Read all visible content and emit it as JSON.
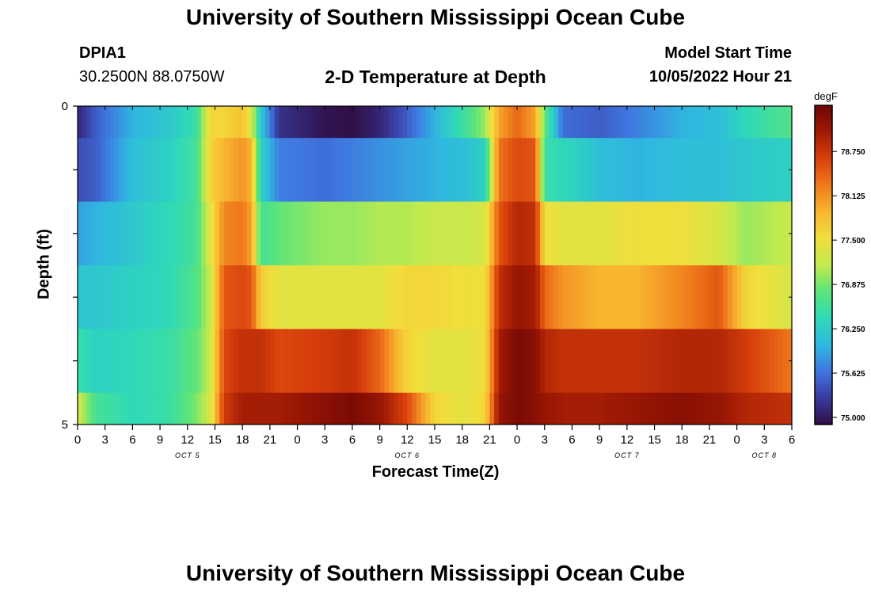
{
  "header": {
    "title_top": "University of Southern Mississippi Ocean Cube",
    "station_id": "DPIA1",
    "station_coords": "30.2500N  88.0750W",
    "chart_title": "2-D Temperature at Depth",
    "model_start_label": "Model Start Time",
    "model_start_value": "10/05/2022 Hour 21",
    "title_bottom": "University of Southern Mississippi Ocean Cube"
  },
  "colors": {
    "ramp": [
      "#2f0f45",
      "#3a3a9e",
      "#3f76e0",
      "#2fb8e0",
      "#2fd9b8",
      "#5be47a",
      "#c2ea4e",
      "#f2de3c",
      "#f8b530",
      "#f07a1c",
      "#d8400c",
      "#a01a04",
      "#6e0505"
    ]
  },
  "chart_data": {
    "type": "heatmap",
    "title": "2-D Temperature at Depth",
    "xlabel": "Forecast Time(Z)",
    "ylabel": "Depth (ft)",
    "colorbar_unit": "degF",
    "colorbar_ticks": [
      "75.000",
      "75.625",
      "76.250",
      "76.875",
      "77.500",
      "78.125",
      "78.750"
    ],
    "colorbar_range": [
      74.9,
      79.4
    ],
    "y_ticks": [
      "0",
      "5"
    ],
    "y_range": [
      0,
      5
    ],
    "x_hours": [
      0,
      3,
      6,
      9,
      12,
      15,
      18,
      21,
      0,
      3,
      6,
      9,
      12,
      15,
      18,
      21,
      0,
      3,
      6,
      9,
      12,
      15,
      18,
      21,
      0,
      3,
      6
    ],
    "x_tick_labels": [
      "0",
      "3",
      "6",
      "9",
      "12",
      "15",
      "18",
      "21",
      "0",
      "3",
      "6",
      "9",
      "12",
      "15",
      "18",
      "21",
      "0",
      "3",
      "6",
      "9",
      "12",
      "15",
      "18",
      "21",
      "0",
      "3",
      "6"
    ],
    "date_labels": [
      "OCT 5",
      "OCT 6",
      "OCT 7",
      "OCT 8"
    ],
    "date_label_hours": [
      12,
      36,
      60,
      75
    ],
    "time_range_hours": [
      0,
      78
    ],
    "depth_rows_ft": [
      0,
      1,
      2,
      3,
      4,
      5
    ],
    "temperature_keyframes": [
      {
        "hour": 0,
        "t": [
          75.1,
          75.4,
          75.9,
          76.2,
          76.5,
          77.3
        ]
      },
      {
        "hour": 2,
        "t": [
          75.5,
          75.5,
          76.0,
          76.2,
          76.3,
          76.6
        ]
      },
      {
        "hour": 6,
        "t": [
          76.0,
          76.1,
          76.2,
          76.3,
          76.4,
          76.4
        ]
      },
      {
        "hour": 10,
        "t": [
          76.2,
          76.3,
          76.4,
          76.4,
          76.5,
          76.5
        ]
      },
      {
        "hour": 13,
        "t": [
          76.5,
          76.6,
          76.6,
          76.7,
          76.8,
          76.9
        ]
      },
      {
        "hour": 14.5,
        "t": [
          77.6,
          77.6,
          77.4,
          77.2,
          77.2,
          77.3
        ]
      },
      {
        "hour": 16,
        "t": [
          77.6,
          77.9,
          78.2,
          78.5,
          78.6,
          78.7
        ]
      },
      {
        "hour": 18,
        "t": [
          77.8,
          78.1,
          78.3,
          78.6,
          78.8,
          79.0
        ]
      },
      {
        "hour": 19,
        "t": [
          77.3,
          77.9,
          78.0,
          78.5,
          78.8,
          79.0
        ]
      },
      {
        "hour": 20,
        "t": [
          76.2,
          76.3,
          76.6,
          77.7,
          78.8,
          79.0
        ]
      },
      {
        "hour": 22,
        "t": [
          75.2,
          75.7,
          76.8,
          77.4,
          78.6,
          79.0
        ]
      },
      {
        "hour": 27,
        "t": [
          74.95,
          75.6,
          77.0,
          77.4,
          78.7,
          79.2
        ]
      },
      {
        "hour": 30,
        "t": [
          74.9,
          75.7,
          77.0,
          77.4,
          78.8,
          79.3
        ]
      },
      {
        "hour": 33,
        "t": [
          75.1,
          75.8,
          77.1,
          77.4,
          78.4,
          79.1
        ]
      },
      {
        "hour": 36,
        "t": [
          75.5,
          75.9,
          77.1,
          77.6,
          77.6,
          78.6
        ]
      },
      {
        "hour": 39,
        "t": [
          76.0,
          76.0,
          77.2,
          77.6,
          77.4,
          77.6
        ]
      },
      {
        "hour": 42,
        "t": [
          76.5,
          76.1,
          77.2,
          77.5,
          77.4,
          77.4
        ]
      },
      {
        "hour": 44.5,
        "t": [
          77.0,
          76.3,
          77.3,
          77.5,
          77.5,
          77.6
        ]
      },
      {
        "hour": 46,
        "t": [
          78.0,
          78.3,
          78.5,
          78.8,
          79.0,
          79.1
        ]
      },
      {
        "hour": 48,
        "t": [
          78.4,
          78.6,
          78.9,
          79.1,
          79.3,
          79.3
        ]
      },
      {
        "hour": 50,
        "t": [
          78.0,
          78.5,
          78.8,
          79.0,
          79.2,
          79.2
        ]
      },
      {
        "hour": 51,
        "t": [
          76.8,
          76.5,
          77.5,
          78.4,
          78.9,
          79.1
        ]
      },
      {
        "hour": 53,
        "t": [
          75.6,
          76.4,
          77.4,
          78.1,
          78.8,
          79.0
        ]
      },
      {
        "hour": 57,
        "t": [
          75.5,
          76.1,
          77.4,
          77.9,
          78.8,
          79.0
        ]
      },
      {
        "hour": 61,
        "t": [
          75.7,
          76.0,
          77.5,
          77.9,
          78.8,
          79.1
        ]
      },
      {
        "hour": 66,
        "t": [
          76.0,
          76.1,
          77.5,
          78.2,
          78.9,
          79.2
        ]
      },
      {
        "hour": 70,
        "t": [
          76.1,
          76.1,
          77.3,
          78.5,
          78.9,
          79.1
        ]
      },
      {
        "hour": 73,
        "t": [
          76.4,
          76.2,
          77.0,
          77.6,
          78.7,
          78.9
        ]
      },
      {
        "hour": 78,
        "t": [
          76.7,
          76.3,
          77.2,
          77.3,
          78.3,
          78.8
        ]
      }
    ]
  }
}
